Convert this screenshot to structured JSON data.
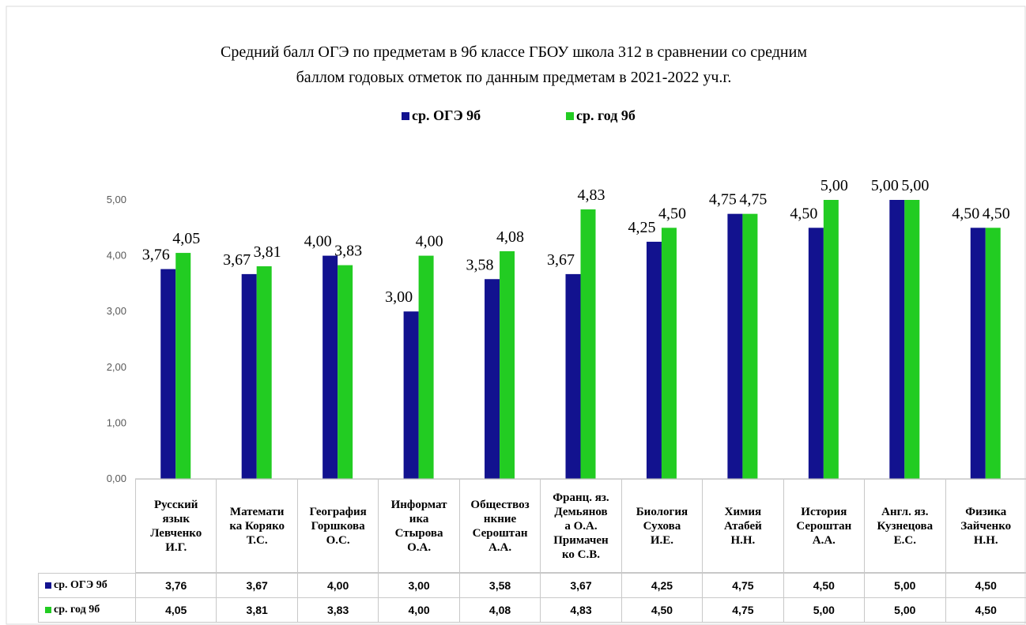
{
  "chart_data": {
    "type": "bar",
    "title": "Средний балл ОГЭ по предметам в 9б классе  ГБОУ школа 312 в сравнении со средним\nбаллом годовых отметок по данным  предметам в 2021-2022 уч.г.",
    "categories": [
      "Русский\nязык\nЛевченко\nИ.Г.",
      "Математи\nка Коряко\nТ.С.",
      "География\nГоршкова\nО.С.",
      "Информат\nика\nСтырова\nО.А.",
      "Обществоз\nнкние\nСероштан\nА.А.",
      "Франц. яз.\nДемьянов\nа О.А.\nПримачен\nко С.В.",
      "Биология\nСухова\nИ.Е.",
      "Химия\nАтабей\nН.Н.",
      "История\nСероштан\nА.А.",
      "Англ. яз.\nКузнецова\nЕ.С.",
      "Физика\nЗайченко\nН.Н."
    ],
    "series": [
      {
        "name": "ср. ОГЭ 9б",
        "color": "#12128f",
        "values": [
          3.76,
          3.67,
          4.0,
          3.0,
          3.58,
          3.67,
          4.25,
          4.75,
          4.5,
          5.0,
          4.5
        ],
        "value_labels": [
          "3,76",
          "3,67",
          "4,00",
          "3,00",
          "3,58",
          "3,67",
          "4,25",
          "4,75",
          "4,50",
          "5,00",
          "4,50"
        ]
      },
      {
        "name": "ср. год 9б",
        "color": "#22cc22",
        "values": [
          4.05,
          3.81,
          3.83,
          4.0,
          4.08,
          4.83,
          4.5,
          4.75,
          5.0,
          5.0,
          4.5
        ],
        "value_labels": [
          "4,05",
          "3,81",
          "3,83",
          "4,00",
          "4,08",
          "4,83",
          "4,50",
          "4,75",
          "5,00",
          "5,00",
          "4,50"
        ]
      }
    ],
    "ylim": [
      0,
      5
    ],
    "yticks": [
      {
        "value": 0,
        "label": "0,00"
      },
      {
        "value": 1,
        "label": "1,00"
      },
      {
        "value": 2,
        "label": "2,00"
      },
      {
        "value": 3,
        "label": "3,00"
      },
      {
        "value": 4,
        "label": "4,00"
      },
      {
        "value": 5,
        "label": "5,00"
      }
    ],
    "grid": false,
    "legend": "top"
  }
}
